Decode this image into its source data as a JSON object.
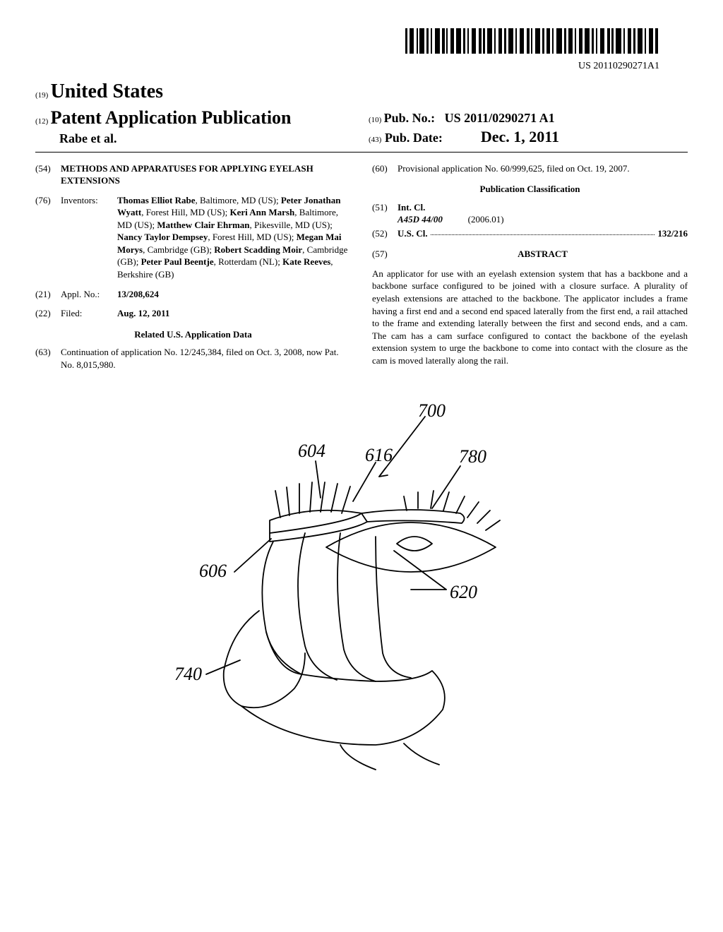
{
  "barcode": {
    "pub_number_text": "US 20110290271A1"
  },
  "header": {
    "code_19": "(19)",
    "country": "United States",
    "code_12": "(12)",
    "pub_type": "Patent Application Publication",
    "authors": "Rabe et al.",
    "code_10": "(10)",
    "pub_no_label": "Pub. No.:",
    "pub_no": "US 2011/0290271 A1",
    "code_43": "(43)",
    "pub_date_label": "Pub. Date:",
    "pub_date": "Dec. 1, 2011"
  },
  "title": {
    "code": "(54)",
    "text": "METHODS AND APPARATUSES FOR APPLYING EYELASH EXTENSIONS"
  },
  "inventors": {
    "code": "(76)",
    "label": "Inventors:",
    "list": [
      {
        "name": "Thomas Elliot Rabe",
        "loc": ", Baltimore, MD (US); "
      },
      {
        "name": "Peter Jonathan Wyatt",
        "loc": ", Forest Hill, MD (US); "
      },
      {
        "name": "Keri Ann Marsh",
        "loc": ", Baltimore, MD (US); "
      },
      {
        "name": "Matthew Clair Ehrman",
        "loc": ", Pikesville, MD (US); "
      },
      {
        "name": "Nancy Taylor Dempsey",
        "loc": ", Forest Hill, MD (US); "
      },
      {
        "name": "Megan Mai Morys",
        "loc": ", Cambridge (GB); "
      },
      {
        "name": "Robert Scadding Moir",
        "loc": ", Cambridge (GB); "
      },
      {
        "name": "Peter Paul Beentje",
        "loc": ", Rotterdam (NL); "
      },
      {
        "name": "Kate Reeves",
        "loc": ", Berkshire (GB)"
      }
    ]
  },
  "appl_no": {
    "code": "(21)",
    "label": "Appl. No.:",
    "value": "13/208,624"
  },
  "filed": {
    "code": "(22)",
    "label": "Filed:",
    "value": "Aug. 12, 2011"
  },
  "related": {
    "heading": "Related U.S. Application Data",
    "code_63": "(63)",
    "text_63": "Continuation of application No. 12/245,384, filed on Oct. 3, 2008, now Pat. No. 8,015,980.",
    "code_60": "(60)",
    "text_60": "Provisional application No. 60/999,625, filed on Oct. 19, 2007."
  },
  "classification": {
    "heading": "Publication Classification",
    "intcl_code": "(51)",
    "intcl_label": "Int. Cl.",
    "intcl_class": "A45D 44/00",
    "intcl_year": "(2006.01)",
    "uscl_code": "(52)",
    "uscl_label": "U.S. Cl.",
    "uscl_value": "132/216"
  },
  "abstract": {
    "code": "(57)",
    "heading": "ABSTRACT",
    "text": "An applicator for use with an eyelash extension system that has a backbone and a backbone surface configured to be joined with a closure surface. A plurality of eyelash extensions are attached to the backbone. The applicator includes a frame having a first end and a second end spaced laterally from the first end, a rail attached to the frame and extending laterally between the first and second ends, and a cam. The cam has a cam surface configured to contact the backbone of the eyelash extension system to urge the backbone to come into contact with the closure as the cam is moved laterally along the rail."
  },
  "figure": {
    "refs": {
      "700": "700",
      "604": "604",
      "616": "616",
      "780": "780",
      "606": "606",
      "620": "620",
      "740": "740"
    }
  }
}
